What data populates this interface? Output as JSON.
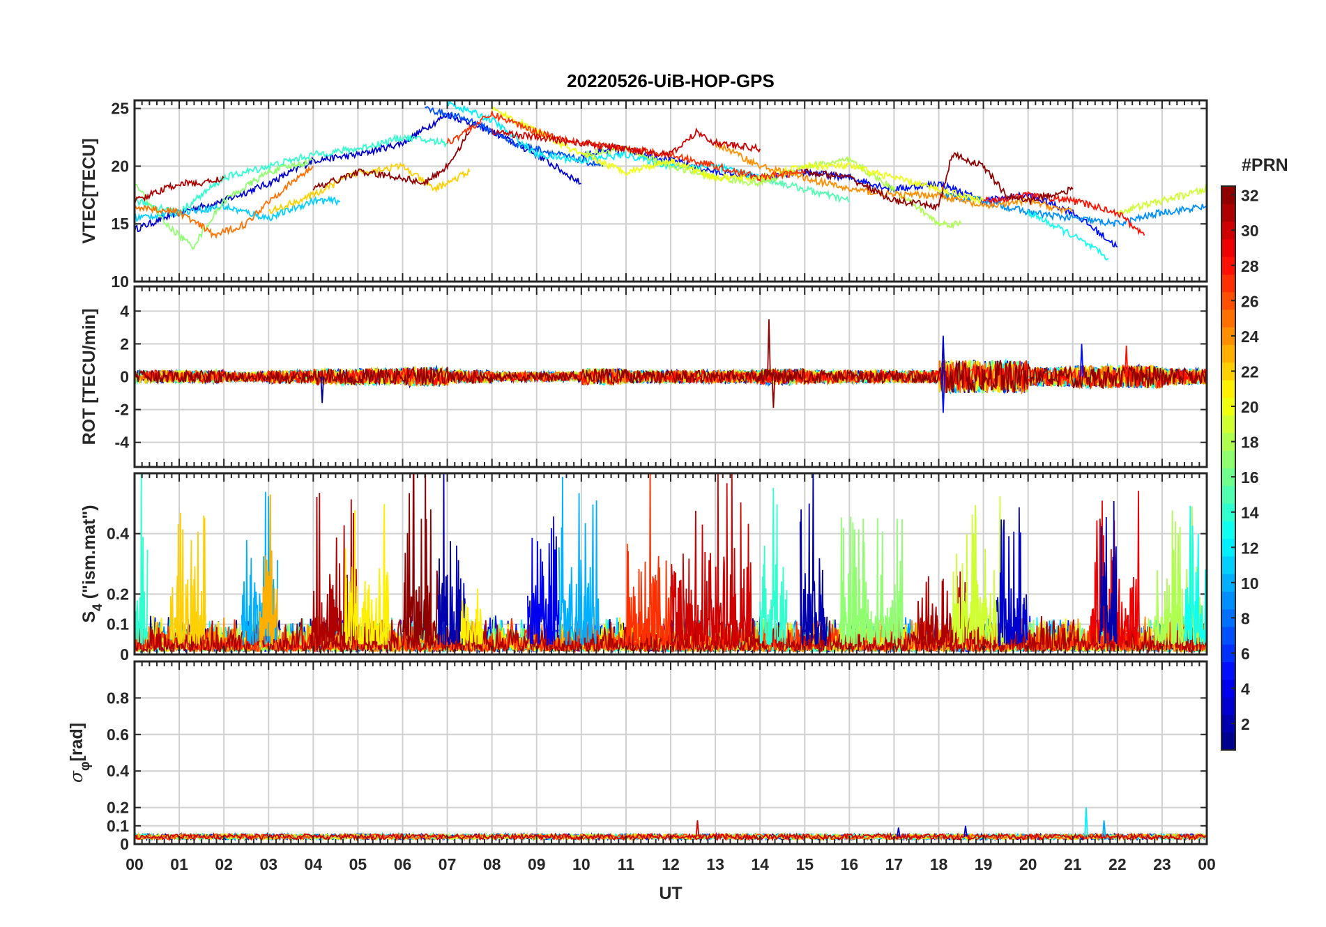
{
  "chart_data": {
    "type": "line",
    "title": "20220526-UiB-HOP-GPS",
    "xlabel": "UT",
    "xlim": [
      0,
      24
    ],
    "x_tick_labels": [
      "00",
      "01",
      "02",
      "03",
      "04",
      "05",
      "06",
      "07",
      "08",
      "09",
      "10",
      "11",
      "12",
      "13",
      "14",
      "15",
      "16",
      "17",
      "18",
      "19",
      "20",
      "21",
      "22",
      "23",
      "00"
    ],
    "grid": true,
    "colorbar": {
      "title": "#PRN",
      "range": [
        1,
        32
      ],
      "colormap": "jet",
      "tick_labels": [
        "2",
        "4",
        "6",
        "8",
        "10",
        "12",
        "14",
        "16",
        "18",
        "20",
        "22",
        "24",
        "26",
        "28",
        "30",
        "32"
      ],
      "placement": "right"
    },
    "panels": [
      {
        "id": "vtec",
        "ylabel": "VTEC[TECU]",
        "ylim": [
          10,
          25.7
        ],
        "y_ticks": [
          10,
          15,
          20,
          25
        ],
        "y_tick_labels": [
          "10",
          "15",
          "20",
          "25"
        ],
        "series": [
          {
            "prn": 3,
            "points": [
              [
                0,
                14.5
              ],
              [
                1,
                16
              ],
              [
                2,
                17
              ],
              [
                3,
                18.5
              ],
              [
                4,
                20.5
              ],
              [
                5,
                21
              ],
              [
                6,
                22
              ],
              [
                7,
                24.5
              ],
              [
                8,
                23
              ],
              [
                9,
                21
              ],
              [
                10,
                18.5
              ]
            ]
          },
          {
            "prn": 5,
            "points": [
              [
                10,
                21
              ],
              [
                11,
                21.5
              ],
              [
                12,
                20.5
              ],
              [
                13,
                19.5
              ],
              [
                14,
                19
              ],
              [
                15,
                19.5
              ],
              [
                16,
                19
              ],
              [
                17,
                18
              ],
              [
                18,
                18.5
              ],
              [
                19,
                17
              ],
              [
                20,
                17.5
              ],
              [
                21,
                16
              ],
              [
                22,
                13
              ]
            ]
          },
          {
            "prn": 7,
            "points": [
              [
                6.5,
                25
              ],
              [
                7.5,
                24
              ],
              [
                8.5,
                22
              ],
              [
                9.5,
                21
              ],
              [
                10.5,
                20
              ]
            ]
          },
          {
            "prn": 9,
            "points": [
              [
                18,
                17.5
              ],
              [
                19,
                17
              ],
              [
                20,
                16
              ],
              [
                21,
                15.5
              ],
              [
                22,
                15
              ],
              [
                23,
                16
              ],
              [
                24,
                16.5
              ]
            ]
          },
          {
            "prn": 11,
            "points": [
              [
                0,
                15.5
              ],
              [
                1,
                16
              ],
              [
                2,
                16.5
              ],
              [
                3,
                15.5
              ],
              [
                4,
                17
              ],
              [
                4.6,
                17
              ]
            ]
          },
          {
            "prn": 12,
            "points": [
              [
                7,
                25.5
              ],
              [
                8,
                24
              ],
              [
                9,
                21
              ],
              [
                10,
                20.5
              ],
              [
                11,
                21
              ],
              [
                12,
                20
              ],
              [
                13,
                20
              ],
              [
                14,
                19
              ]
            ]
          },
          {
            "prn": 13,
            "points": [
              [
                20,
                16
              ],
              [
                21,
                14
              ],
              [
                21.8,
                12
              ]
            ]
          },
          {
            "prn": 14,
            "points": [
              [
                0,
                17
              ],
              [
                1,
                16
              ],
              [
                2,
                19
              ],
              [
                3,
                20
              ],
              [
                4,
                21
              ],
              [
                5,
                21.5
              ],
              [
                6,
                22.5
              ],
              [
                7,
                22
              ]
            ]
          },
          {
            "prn": 15,
            "points": [
              [
                14,
                19
              ],
              [
                15,
                18
              ],
              [
                16,
                17
              ]
            ]
          },
          {
            "prn": 17,
            "points": [
              [
                0,
                18.5
              ],
              [
                0.7,
                15
              ],
              [
                1.3,
                13
              ],
              [
                2,
                17
              ],
              [
                3,
                19.5
              ],
              [
                4,
                20.5
              ]
            ]
          },
          {
            "prn": 18,
            "points": [
              [
                10,
                21
              ],
              [
                11,
                21.5
              ],
              [
                12,
                20
              ],
              [
                13,
                19
              ],
              [
                14,
                18.5
              ],
              [
                15,
                20
              ],
              [
                16,
                20.5
              ],
              [
                17,
                18
              ],
              [
                18,
                15
              ],
              [
                18.5,
                15
              ]
            ]
          },
          {
            "prn": 19,
            "points": [
              [
                22,
                16
              ],
              [
                23,
                17
              ],
              [
                24,
                18
              ]
            ]
          },
          {
            "prn": 20,
            "points": [
              [
                8,
                25
              ],
              [
                9,
                23
              ],
              [
                10,
                21
              ],
              [
                11,
                19.5
              ],
              [
                12,
                20.5
              ],
              [
                13,
                19
              ],
              [
                14,
                19
              ],
              [
                15,
                20
              ],
              [
                16,
                20
              ],
              [
                17,
                19
              ],
              [
                18,
                18
              ],
              [
                19,
                17
              ]
            ]
          },
          {
            "prn": 22,
            "points": [
              [
                3,
                16
              ],
              [
                4,
                17.5
              ],
              [
                5,
                19.5
              ],
              [
                6,
                20
              ],
              [
                6.7,
                18
              ],
              [
                7.5,
                19.5
              ]
            ]
          },
          {
            "prn": 24,
            "points": [
              [
                13,
                22
              ],
              [
                14,
                20
              ],
              [
                15,
                19
              ],
              [
                16,
                18
              ],
              [
                17,
                17.5
              ],
              [
                18,
                17.5
              ],
              [
                19,
                16.5
              ],
              [
                20,
                17
              ],
              [
                21,
                16
              ]
            ]
          },
          {
            "prn": 25,
            "points": [
              [
                0,
                16.5
              ],
              [
                1,
                16
              ],
              [
                1.8,
                14
              ],
              [
                2.5,
                15
              ],
              [
                3,
                17
              ],
              [
                4,
                20
              ]
            ]
          },
          {
            "prn": 27,
            "points": [
              [
                7,
                22
              ],
              [
                8,
                24.5
              ],
              [
                9,
                23
              ],
              [
                10,
                22
              ],
              [
                11,
                21.5
              ],
              [
                12,
                21
              ],
              [
                13,
                20
              ],
              [
                14,
                19
              ],
              [
                15,
                19.5
              ]
            ]
          },
          {
            "prn": 28,
            "points": [
              [
                19,
                17
              ],
              [
                20,
                17.5
              ],
              [
                21,
                17
              ],
              [
                22,
                16
              ],
              [
                22.6,
                14
              ]
            ]
          },
          {
            "prn": 30,
            "points": [
              [
                8,
                23
              ],
              [
                9,
                22.5
              ],
              [
                10,
                22
              ],
              [
                11,
                21.5
              ],
              [
                12,
                21
              ],
              [
                12.6,
                23
              ],
              [
                13,
                22
              ],
              [
                14,
                21.5
              ]
            ]
          },
          {
            "prn": 31,
            "points": [
              [
                0,
                17
              ],
              [
                1,
                18.5
              ],
              [
                1.5,
                18.5
              ],
              [
                2,
                19
              ]
            ]
          },
          {
            "prn": 32,
            "points": [
              [
                4,
                18
              ],
              [
                5,
                19.5
              ],
              [
                6,
                19
              ],
              [
                6.5,
                18.5
              ],
              [
                7,
                20
              ],
              [
                7.5,
                23
              ]
            ]
          },
          {
            "prn": 32,
            "points": [
              [
                15,
                19.5
              ],
              [
                16,
                19
              ],
              [
                17,
                17
              ],
              [
                18,
                16.5
              ],
              [
                18.3,
                21
              ],
              [
                19,
                20
              ],
              [
                19.5,
                17.5
              ],
              [
                20,
                17
              ],
              [
                21,
                18
              ]
            ]
          }
        ]
      },
      {
        "id": "rot",
        "ylabel": "ROT [TECU/min]",
        "ylim": [
          -5.5,
          5.5
        ],
        "y_ticks": [
          -4,
          -2,
          0,
          2,
          4
        ],
        "y_tick_labels": [
          "-4",
          "-2",
          "0",
          "2",
          "4"
        ],
        "noise_amplitude_by_hour": [
          0.4,
          0.4,
          0.3,
          0.4,
          0.5,
          0.5,
          0.6,
          0.4,
          0.3,
          0.3,
          0.5,
          0.4,
          0.4,
          0.4,
          0.5,
          0.4,
          0.4,
          0.4,
          1.0,
          1.0,
          0.6,
          0.7,
          0.7,
          0.5
        ],
        "spikes": [
          [
            1,
            4.2,
            -1.6
          ],
          [
            32,
            14.2,
            3.5
          ],
          [
            32,
            14.3,
            -1.9
          ],
          [
            3,
            18.1,
            2.5
          ],
          [
            5,
            18.1,
            -2.2
          ],
          [
            5,
            21.2,
            2.0
          ],
          [
            28,
            22.2,
            1.9
          ]
        ]
      },
      {
        "id": "s4",
        "ylabel": "S4 (\"ism.mat\")",
        "ylabel_main": "S",
        "ylabel_sub": "4",
        "ylabel_rest": " (\"ism.mat\")",
        "ylim": [
          0,
          0.6
        ],
        "y_ticks": [
          0,
          0.1,
          0.2,
          0.4
        ],
        "y_tick_labels": [
          "0",
          "0.1",
          "0.2",
          "0.4"
        ],
        "active_bursts": [
          {
            "prn": 14,
            "start": 0,
            "end": 0.3,
            "peak": 0.6
          },
          {
            "prn": 22,
            "start": 0.8,
            "end": 1.6,
            "peak": 0.43
          },
          {
            "prn": 10,
            "start": 2.4,
            "end": 3.2,
            "peak": 0.5
          },
          {
            "prn": 23,
            "start": 2.8,
            "end": 3.2,
            "peak": 0.5
          },
          {
            "prn": 31,
            "start": 4.0,
            "end": 5.0,
            "peak": 0.5
          },
          {
            "prn": 21,
            "start": 4.7,
            "end": 5.7,
            "peak": 0.47
          },
          {
            "prn": 32,
            "start": 6.0,
            "end": 6.8,
            "peak": 0.6
          },
          {
            "prn": 2,
            "start": 6.8,
            "end": 7.4,
            "peak": 0.6
          },
          {
            "prn": 21,
            "start": 7.3,
            "end": 7.8,
            "peak": 0.36
          },
          {
            "prn": 4,
            "start": 8.8,
            "end": 9.5,
            "peak": 0.45
          },
          {
            "prn": 10,
            "start": 9.5,
            "end": 10.4,
            "peak": 0.6
          },
          {
            "prn": 27,
            "start": 11.0,
            "end": 12.0,
            "peak": 0.6
          },
          {
            "prn": 30,
            "start": 12.0,
            "end": 13.8,
            "peak": 0.6
          },
          {
            "prn": 14,
            "start": 14.0,
            "end": 14.6,
            "peak": 0.6
          },
          {
            "prn": 2,
            "start": 14.9,
            "end": 15.5,
            "peak": 0.6
          },
          {
            "prn": 17,
            "start": 15.8,
            "end": 17.2,
            "peak": 0.42
          },
          {
            "prn": 31,
            "start": 17.5,
            "end": 18.8,
            "peak": 0.25
          },
          {
            "prn": 19,
            "start": 18.3,
            "end": 19.5,
            "peak": 0.53
          },
          {
            "prn": 3,
            "start": 19.3,
            "end": 20.0,
            "peak": 0.5
          },
          {
            "prn": 29,
            "start": 21.4,
            "end": 22.5,
            "peak": 0.6
          },
          {
            "prn": 2,
            "start": 21.6,
            "end": 22.0,
            "peak": 0.6
          },
          {
            "prn": 18,
            "start": 22.8,
            "end": 24.0,
            "peak": 0.45
          },
          {
            "prn": 13,
            "start": 23.5,
            "end": 24.0,
            "peak": 0.55
          }
        ]
      },
      {
        "id": "sigma_phi",
        "ylabel": "σφ[rad]",
        "ylabel_main": "σ",
        "ylabel_sub": "φ",
        "ylabel_rest": "[rad]",
        "ylim": [
          0,
          1
        ],
        "y_ticks": [
          0,
          0.1,
          0.2,
          0.4,
          0.6,
          0.8
        ],
        "y_tick_labels": [
          "0",
          "0.1",
          "0.2",
          "0.4",
          "0.6",
          "0.8"
        ],
        "baseline": 0.04,
        "spikes": [
          [
            30,
            12.6,
            0.13
          ],
          [
            3,
            18.6,
            0.1
          ],
          [
            12,
            21.3,
            0.2
          ],
          [
            10,
            21.7,
            0.13
          ],
          [
            3,
            17.1,
            0.09
          ]
        ]
      }
    ]
  }
}
